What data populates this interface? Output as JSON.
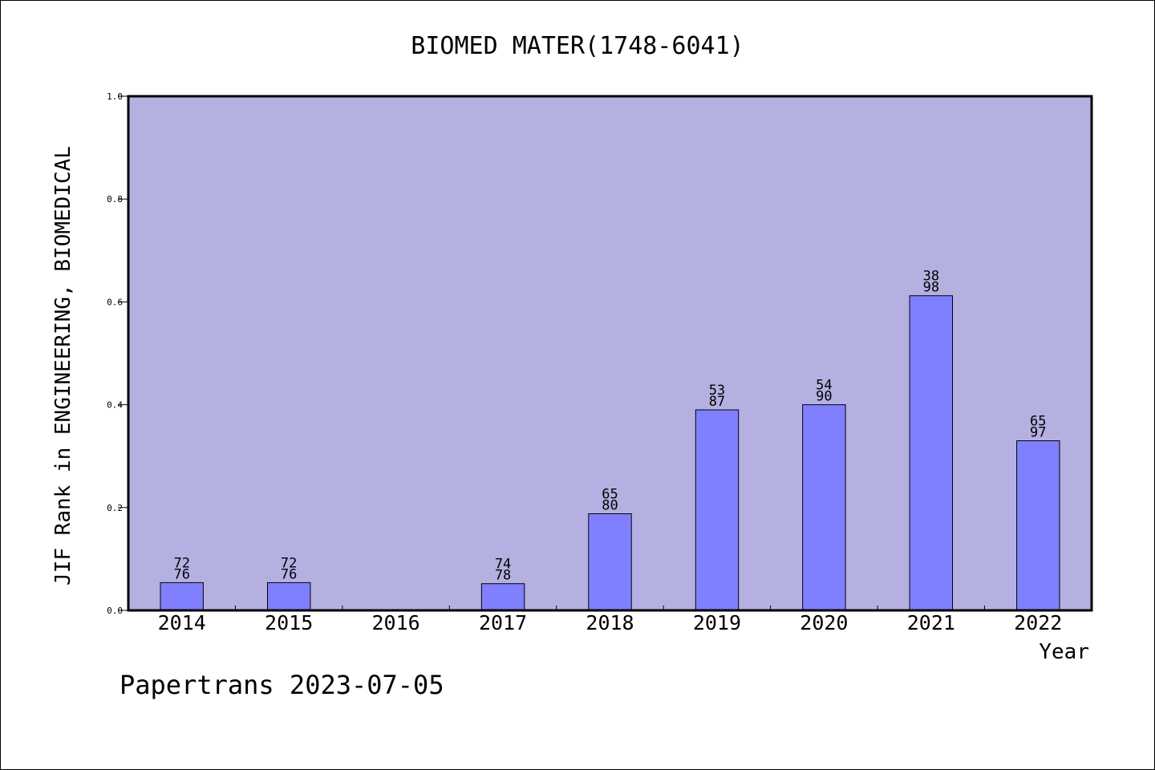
{
  "chart_data": {
    "type": "bar",
    "title": "BIOMED MATER(1748-6041)",
    "xlabel": "Year",
    "ylabel": "JIF Rank in ENGINEERING, BIOMEDICAL",
    "ylim": [
      0,
      1.0
    ],
    "yticks": [
      "0.0",
      "0.2",
      "0.4",
      "0.6",
      "0.8",
      "1.0"
    ],
    "categories": [
      "2014",
      "2015",
      "2016",
      "2017",
      "2018",
      "2019",
      "2020",
      "2021",
      "2022"
    ],
    "values": [
      0.054,
      0.054,
      null,
      0.052,
      0.188,
      0.39,
      0.4,
      0.612,
      0.33
    ],
    "labels": [
      {
        "rank": "72",
        "total": "76"
      },
      {
        "rank": "72",
        "total": "76"
      },
      null,
      {
        "rank": "74",
        "total": "78"
      },
      {
        "rank": "65",
        "total": "80"
      },
      {
        "rank": "53",
        "total": "87"
      },
      {
        "rank": "54",
        "total": "90"
      },
      {
        "rank": "38",
        "total": "98"
      },
      {
        "rank": "65",
        "total": "97"
      }
    ],
    "grid": false,
    "colors": {
      "plot_background": "#b5b0e2",
      "bar_fill": "#8080ff",
      "bar_stroke": "#000000"
    }
  },
  "footer": "Papertrans 2023-07-05"
}
